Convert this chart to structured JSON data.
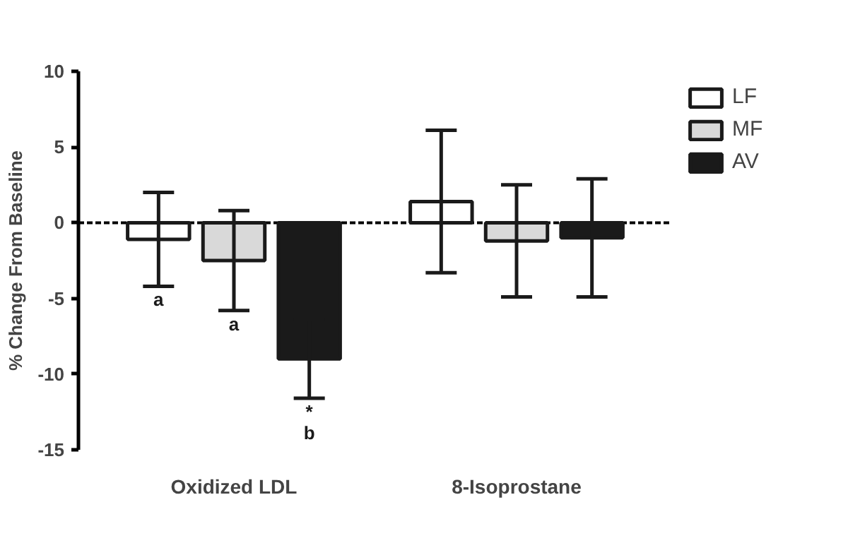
{
  "chart_data": {
    "type": "bar",
    "ylabel": "% Change From Baseline",
    "categories": [
      "Oxidized LDL",
      "8-Isoprostane"
    ],
    "series": [
      {
        "name": "LF",
        "color": "#ffffff",
        "values": [
          -1.1,
          1.4
        ],
        "errors": [
          3.1,
          4.7
        ],
        "value_labels": [
          "a",
          null
        ]
      },
      {
        "name": "MF",
        "color": "#d9d9d9",
        "values": [
          -2.5,
          -1.2
        ],
        "errors": [
          3.3,
          3.7
        ],
        "value_labels": [
          "a",
          null
        ]
      },
      {
        "name": "AV",
        "color": "#1a1a1a",
        "values": [
          -9.0,
          -1.0
        ],
        "errors": [
          2.6,
          3.9
        ],
        "value_labels": [
          "*\nb",
          null
        ]
      }
    ],
    "ylim": [
      -15,
      10
    ],
    "yticks": [
      -15,
      -10,
      -5,
      0,
      5,
      10
    ],
    "ref_lines": [
      {
        "axis": "y",
        "value": 0,
        "line_style": "dashed",
        "color": "#000000"
      }
    ],
    "grid": false,
    "legend": "top right"
  }
}
